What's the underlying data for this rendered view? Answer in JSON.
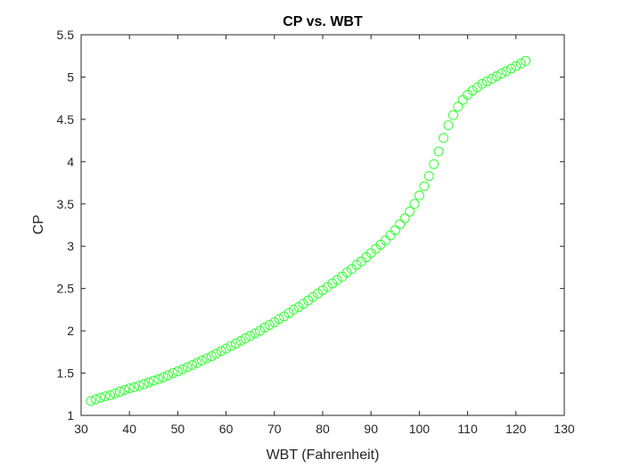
{
  "chart_data": {
    "type": "scatter",
    "title": "CP vs. WBT",
    "xlabel": "WBT (Fahrenheit)",
    "ylabel": "CP",
    "xlim": [
      30,
      130
    ],
    "ylim": [
      1,
      5.5
    ],
    "x_ticks": [
      "30",
      "40",
      "50",
      "60",
      "70",
      "80",
      "90",
      "100",
      "110",
      "120",
      "130"
    ],
    "y_ticks": [
      "1",
      "1.5",
      "2",
      "2.5",
      "3",
      "3.5",
      "4",
      "4.5",
      "5",
      "5.5"
    ],
    "grid": false,
    "marker": "circle-open",
    "marker_color": "#33ff33",
    "series": [
      {
        "x": [
          32,
          33,
          34,
          35,
          36,
          37,
          38,
          39,
          40,
          41,
          42,
          43,
          44,
          45,
          46,
          47,
          48,
          49,
          50,
          51,
          52,
          53,
          54,
          55,
          56,
          57,
          58,
          59,
          60,
          61,
          62,
          63,
          64,
          65,
          66,
          67,
          68,
          69,
          70,
          71,
          72,
          73,
          74,
          75,
          76,
          77,
          78,
          79,
          80,
          81,
          82,
          83,
          84,
          85,
          86,
          87,
          88,
          89,
          90,
          91,
          92,
          93,
          94,
          95,
          96,
          97,
          98,
          99,
          100,
          101,
          102,
          103,
          104,
          105,
          106,
          107,
          108,
          109,
          110,
          111,
          112,
          113,
          114,
          115,
          116,
          117,
          118,
          119,
          120,
          121,
          122
        ],
        "y": [
          1.17,
          1.19,
          1.21,
          1.225,
          1.24,
          1.26,
          1.28,
          1.3,
          1.32,
          1.335,
          1.35,
          1.37,
          1.39,
          1.41,
          1.43,
          1.45,
          1.475,
          1.5,
          1.52,
          1.545,
          1.57,
          1.595,
          1.62,
          1.65,
          1.675,
          1.7,
          1.73,
          1.76,
          1.79,
          1.82,
          1.85,
          1.88,
          1.91,
          1.94,
          1.97,
          2.0,
          2.04,
          2.07,
          2.1,
          2.14,
          2.17,
          2.21,
          2.25,
          2.28,
          2.32,
          2.36,
          2.4,
          2.44,
          2.48,
          2.52,
          2.56,
          2.6,
          2.64,
          2.69,
          2.73,
          2.78,
          2.82,
          2.87,
          2.92,
          2.97,
          3.02,
          3.07,
          3.13,
          3.19,
          3.26,
          3.33,
          3.41,
          3.5,
          3.6,
          3.71,
          3.83,
          3.97,
          4.12,
          4.28,
          4.43,
          4.55,
          4.65,
          4.73,
          4.79,
          4.84,
          4.88,
          4.92,
          4.95,
          4.98,
          5.01,
          5.04,
          5.07,
          5.1,
          5.13,
          5.16,
          5.19
        ]
      }
    ]
  }
}
